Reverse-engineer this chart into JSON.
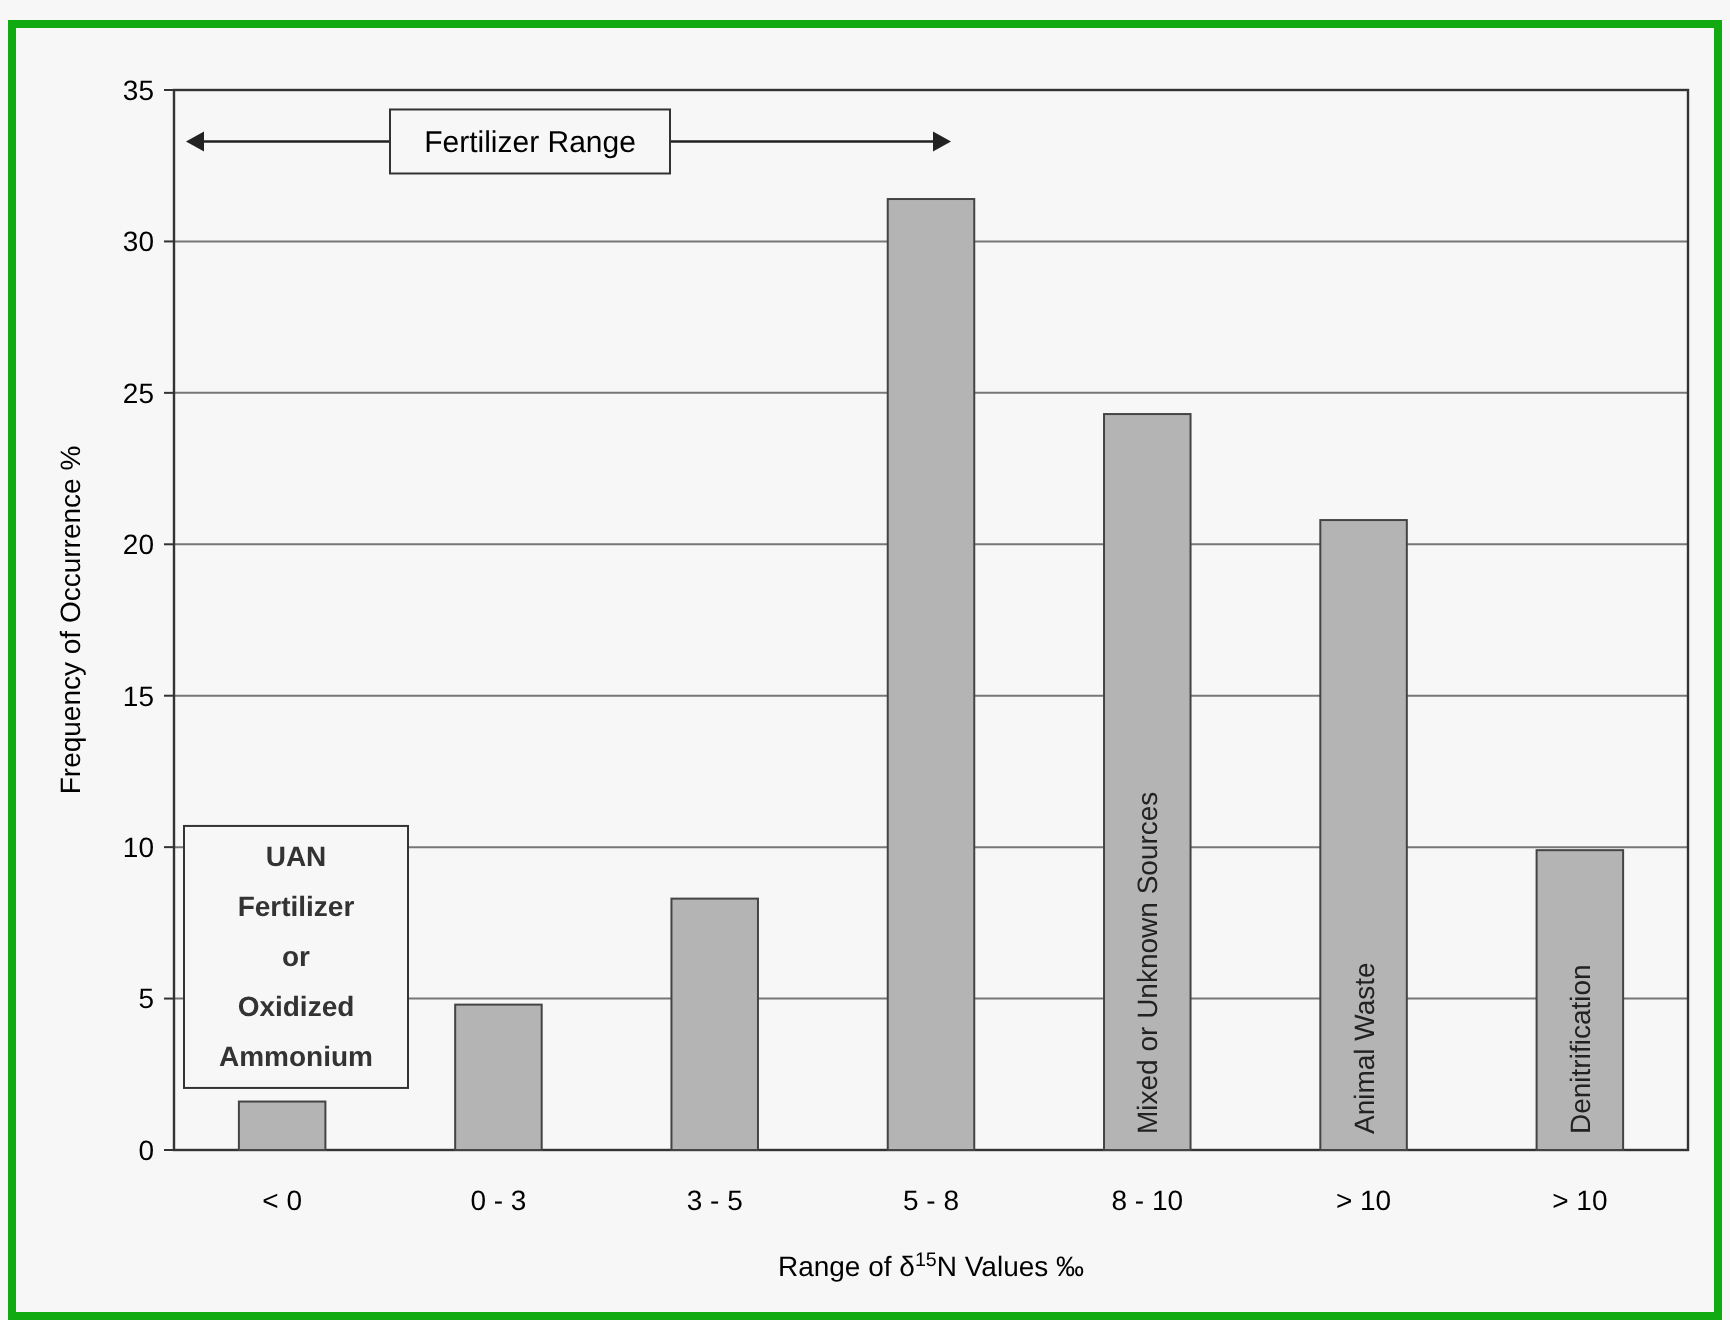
{
  "chart_data": {
    "type": "bar",
    "xlabel": "Range of δ$^{15}$N Values ‰",
    "ylabel": "Frequency of Occurrence %",
    "categories": [
      "< 0",
      "0 - 3",
      "3 - 5",
      "5 - 8",
      "8 - 10",
      "> 10",
      "> 10"
    ],
    "values": [
      1.6,
      4.8,
      8.3,
      31.4,
      24.3,
      20.8,
      9.9
    ],
    "color": "#b4b4b4",
    "ylim": [
      0,
      35
    ],
    "yticks": [
      0,
      5,
      10,
      15,
      20,
      25,
      30,
      35
    ],
    "grid": "y",
    "annotations": [
      "Fertilizer Range",
      "UAN\nFertilizer\nor\nOxidized\nAmmonium",
      "Mixed or Unknown Sources",
      "Animal Waste",
      "Denitrification"
    ]
  }
}
